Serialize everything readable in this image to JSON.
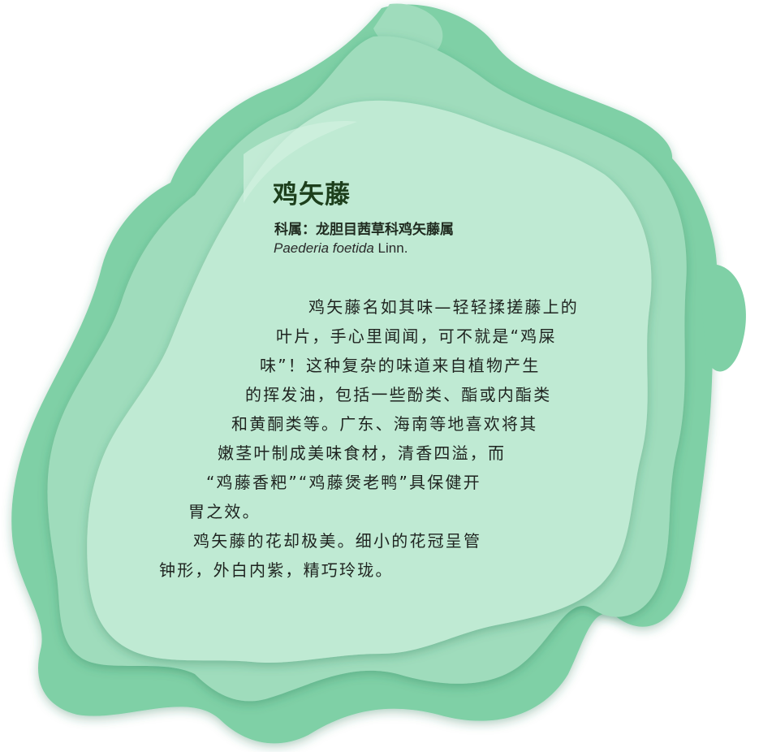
{
  "colors": {
    "outer_layer": "#7fd0a6",
    "middle_layer": "#9fdcbc",
    "inner_layer": "#bfead3",
    "title_text": "#1d3f1c",
    "body_text": "#1f2420"
  },
  "card": {
    "title": "鸡矢藤",
    "family_line": "科属：龙胆目茜草科鸡矢藤属",
    "latin_name_italic": "Paederia foetida",
    "latin_author": " Linn.",
    "body_lines": [
      "鸡矢藤名如其味—轻轻揉搓藤上的",
      "叶片，手心里闻闻，可不就是“鸡屎",
      "味”！这种复杂的味道来自植物产生",
      "的挥发油，包括一些酚类、酯或内酯类",
      "和黄酮类等。广东、海南等地喜欢将其",
      "嫩茎叶制成美味食材，清香四溢，而",
      "“鸡藤香粑”“鸡藤煲老鸭”具保健开",
      "胃之效。",
      "鸡矢藤的花却极美。细小的花冠呈管",
      "钟形，外白内紫，精巧玲珑。"
    ]
  }
}
